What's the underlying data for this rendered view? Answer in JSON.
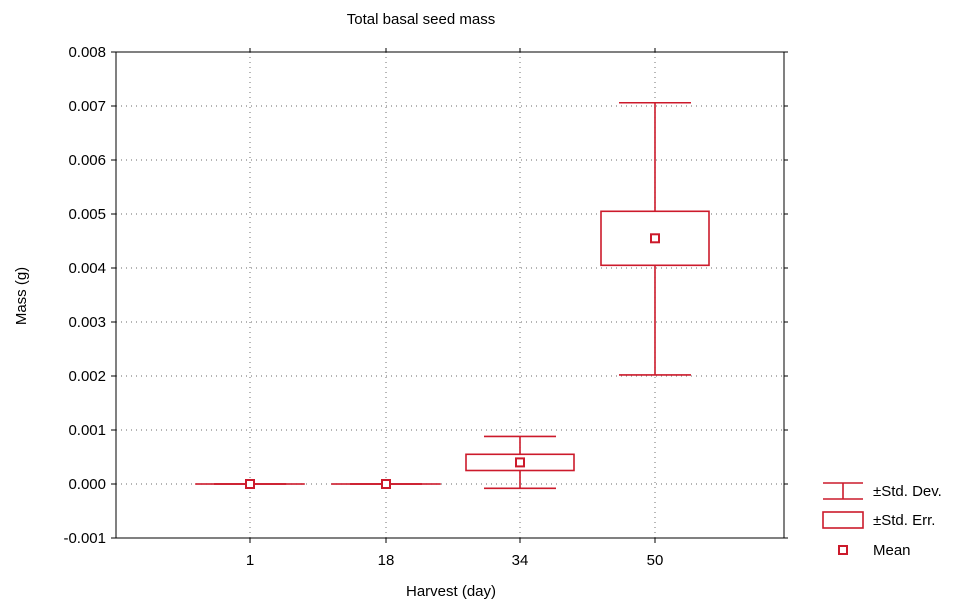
{
  "chart_data": {
    "type": "box",
    "title": "Total basal seed mass",
    "xlabel": "Harvest (day)",
    "ylabel": "Mass (g)",
    "ylim": [
      -0.001,
      0.008
    ],
    "yticks": [
      -0.001,
      0.0,
      0.001,
      0.002,
      0.003,
      0.004,
      0.005,
      0.006,
      0.007,
      0.008
    ],
    "ytick_labels": [
      "-0.001",
      "0.000",
      "0.001",
      "0.002",
      "0.003",
      "0.004",
      "0.005",
      "0.006",
      "0.007",
      "0.008"
    ],
    "categories": [
      "1",
      "18",
      "34",
      "50"
    ],
    "grid": true,
    "series": [
      {
        "category": "1",
        "mean": 0.0,
        "se_low": 0.0,
        "se_high": 0.0,
        "sd_low": 0.0,
        "sd_high": 0.0
      },
      {
        "category": "18",
        "mean": 0.0,
        "se_low": 0.0,
        "se_high": 0.0,
        "sd_low": 0.0,
        "sd_high": 0.0
      },
      {
        "category": "34",
        "mean": 0.0004,
        "se_low": 0.00025,
        "se_high": 0.00055,
        "sd_low": -8e-05,
        "sd_high": 0.00088
      },
      {
        "category": "50",
        "mean": 0.00455,
        "se_low": 0.00405,
        "se_high": 0.00505,
        "sd_low": 0.00202,
        "sd_high": 0.00706
      }
    ],
    "legend": {
      "position": "right",
      "entries": [
        {
          "label": "±Std. Dev.",
          "symbol": "whisker"
        },
        {
          "label": "±Std. Err.",
          "symbol": "box"
        },
        {
          "label": "Mean",
          "symbol": "square"
        }
      ]
    },
    "colors": {
      "series": "#cc1a2b",
      "grid": "#888888",
      "axis": "#000000"
    }
  }
}
